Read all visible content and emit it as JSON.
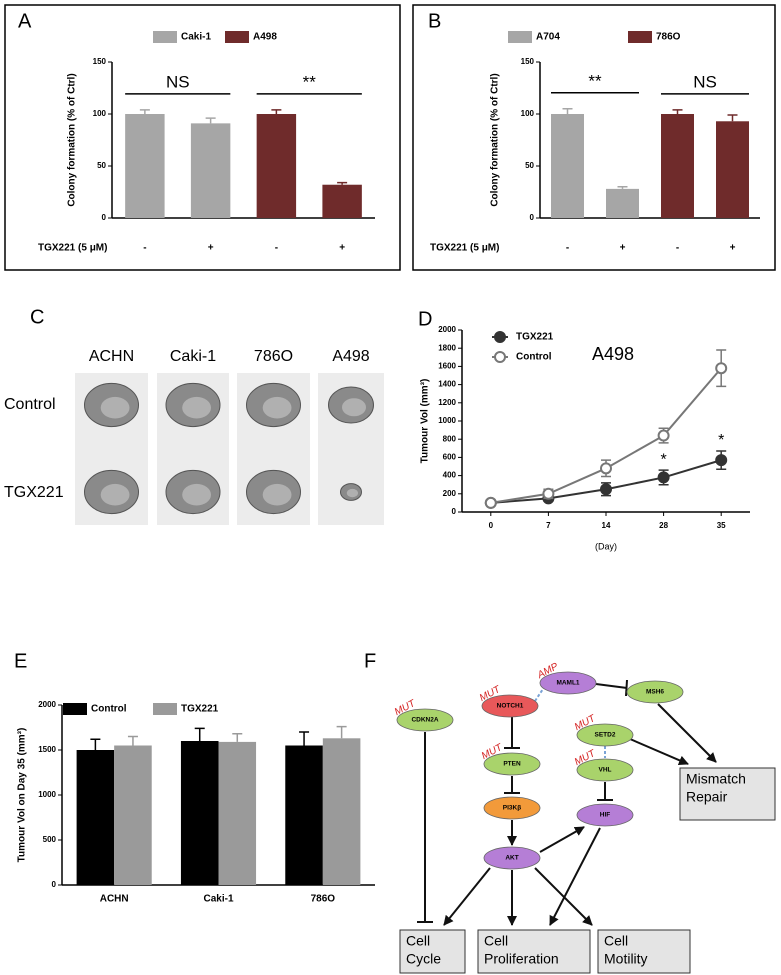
{
  "chart_data": [
    {
      "type": "bar",
      "panel": "A",
      "ylabel": "Colony formation (% of Ctrl)",
      "row_label": "TGX221 (5 μM)",
      "categories": [
        "-",
        "+",
        "-",
        "+"
      ],
      "series": [
        {
          "name": "Caki-1",
          "color": "#a6a6a6",
          "values": [
            100,
            91,
            null,
            null
          ],
          "errors": [
            4,
            5,
            null,
            null
          ]
        },
        {
          "name": "A498",
          "color": "#6f2b2b",
          "values": [
            null,
            null,
            100,
            32
          ],
          "errors": [
            null,
            null,
            4,
            2
          ]
        }
      ],
      "ylim": [
        0,
        150
      ],
      "yticks": [
        0,
        50,
        100,
        150
      ],
      "annotations": [
        "NS",
        "**"
      ]
    },
    {
      "type": "bar",
      "panel": "B",
      "ylabel": "Colony formation (% of Ctrl)",
      "row_label": "TGX221 (5 μM)",
      "categories": [
        "-",
        "+",
        "-",
        "+"
      ],
      "series": [
        {
          "name": "A704",
          "color": "#a6a6a6",
          "values": [
            100,
            28,
            null,
            null
          ],
          "errors": [
            5,
            2,
            null,
            null
          ]
        },
        {
          "name": "786O",
          "color": "#6f2b2b",
          "values": [
            null,
            null,
            100,
            93
          ],
          "errors": [
            null,
            null,
            4,
            6
          ]
        }
      ],
      "ylim": [
        0,
        150
      ],
      "yticks": [
        0,
        50,
        100,
        150
      ],
      "annotations": [
        "**",
        "NS"
      ]
    },
    {
      "type": "line",
      "panel": "D",
      "ylabel": "Tumour Vol  (mm³)",
      "xlabel": "(Day)",
      "categories": [
        "0",
        "7",
        "14",
        "28",
        "35"
      ],
      "series": [
        {
          "name": "TGX221",
          "color": "#333333",
          "marker": "filled",
          "values": [
            100,
            150,
            250,
            380,
            570
          ],
          "errors": [
            20,
            30,
            70,
            80,
            100
          ],
          "point_labels": [
            null,
            null,
            null,
            "*",
            "*"
          ]
        },
        {
          "name": "Control",
          "color": "#777777",
          "marker": "open",
          "values": [
            100,
            200,
            480,
            840,
            1580
          ],
          "errors": [
            20,
            50,
            90,
            80,
            200
          ]
        }
      ],
      "ylim": [
        0,
        2000
      ],
      "yticks": [
        0,
        200,
        400,
        600,
        800,
        1000,
        1200,
        1400,
        1600,
        1800,
        2000
      ],
      "annotations": [
        "A498"
      ]
    },
    {
      "type": "grouped_bar",
      "panel": "E",
      "ylabel": "Tumour Vol  on Day 35 (mm³)",
      "categories": [
        "ACHN",
        "Caki-1",
        "786O"
      ],
      "series": [
        {
          "name": "Control",
          "color": "#000000",
          "values": [
            1500,
            1600,
            1550
          ],
          "errors": [
            120,
            140,
            150
          ]
        },
        {
          "name": "TGX221",
          "color": "#9a9a9a",
          "values": [
            1550,
            1590,
            1630
          ],
          "errors": [
            100,
            90,
            130
          ]
        }
      ],
      "ylim": [
        0,
        2000
      ],
      "yticks": [
        0,
        500,
        1000,
        1500,
        2000
      ]
    }
  ],
  "panel_c": {
    "panel": "C",
    "columns": [
      "ACHN",
      "Caki-1",
      "786O",
      "A498"
    ],
    "rows": [
      "Control",
      "TGX221"
    ]
  },
  "diagram": {
    "panel": "F",
    "nodes": [
      {
        "label": "NOTCH1",
        "tag": "MUT",
        "color": "#e8585a"
      },
      {
        "label": "MAML1",
        "tag": "AMP",
        "color": "#b57ed6"
      },
      {
        "label": "MSH6",
        "color": "#a9d36b"
      },
      {
        "label": "CDKN2A",
        "tag": "MUT",
        "color": "#a9d36b"
      },
      {
        "label": "SETD2",
        "tag": "MUT",
        "color": "#a9d36b"
      },
      {
        "label": "PTEN",
        "tag": "MUT",
        "color": "#a9d36b"
      },
      {
        "label": "VHL",
        "tag": "MUT",
        "color": "#a9d36b"
      },
      {
        "label": "PI3Kβ",
        "color": "#f29a3a"
      },
      {
        "label": "HIF",
        "color": "#b57ed6"
      },
      {
        "label": "AKT",
        "color": "#b57ed6"
      }
    ],
    "outcomes": [
      [
        "Mismatch",
        "Repair"
      ],
      [
        "Cell",
        "Cycle"
      ],
      [
        "Cell",
        "Proliferation"
      ],
      [
        "Cell",
        "Motility"
      ]
    ]
  }
}
